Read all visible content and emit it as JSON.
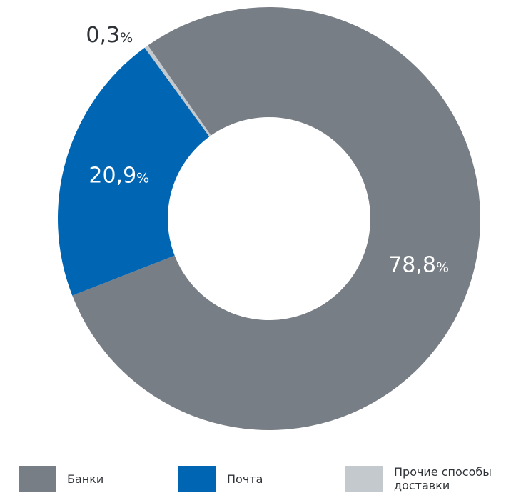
{
  "chart_data": {
    "type": "pie",
    "variant": "donut",
    "series": [
      {
        "name": "Банки",
        "value": 78.8,
        "label_number": "78,8",
        "label_unit": "%",
        "color": "#787e85"
      },
      {
        "name": "Почта",
        "value": 20.9,
        "label_number": "20,9",
        "label_unit": "%",
        "color": "#0066b3"
      },
      {
        "name": "Прочие способы\nдоставки",
        "value": 0.3,
        "label_number": "0,3",
        "label_unit": "%",
        "color": "#c4c9cd"
      }
    ],
    "legend_placement": "bottom"
  },
  "label_colors": {
    "inside": "#ffffff",
    "outside": "#2f3338"
  }
}
